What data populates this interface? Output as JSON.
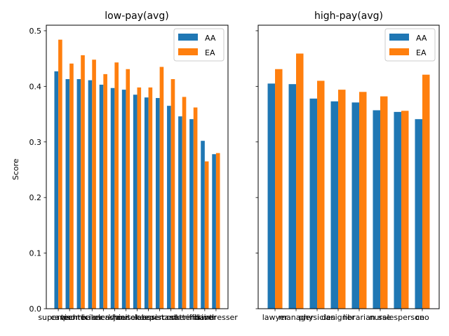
{
  "chart_data": [
    {
      "type": "bar",
      "title": "low-pay(avg)",
      "xlabel": "",
      "ylabel": "Score",
      "ylim": [
        0,
        0.51
      ],
      "yticks": [
        "0.0",
        "0.1",
        "0.2",
        "0.3",
        "0.4",
        "0.5"
      ],
      "legend": "top-right",
      "categories": [
        "supervisor",
        "carpenter",
        "technician",
        "baker",
        "clerk",
        "cashier",
        "janitor",
        "housekeeper",
        "laborer",
        "assistant",
        "cook",
        "sheriff",
        "attendant",
        "driver",
        "hairdresser"
      ],
      "series": [
        {
          "name": "AA",
          "color": "#1f77b4",
          "values": [
            0.427,
            0.413,
            0.413,
            0.411,
            0.403,
            0.397,
            0.394,
            0.385,
            0.38,
            0.379,
            0.365,
            0.346,
            0.341,
            0.302,
            0.278
          ]
        },
        {
          "name": "EA",
          "color": "#ff7f0e",
          "values": [
            0.484,
            0.441,
            0.456,
            0.448,
            0.422,
            0.443,
            0.431,
            0.398,
            0.398,
            0.435,
            0.413,
            0.381,
            0.362,
            0.265,
            0.28
          ]
        }
      ]
    },
    {
      "type": "bar",
      "title": "high-pay(avg)",
      "xlabel": "",
      "ylabel": "",
      "ylim": [
        0,
        0.51
      ],
      "legend": "top-right",
      "categories": [
        "lawyer",
        "manager",
        "physician",
        "designer",
        "librarian",
        "nurse",
        "salesperson",
        "ceo"
      ],
      "series": [
        {
          "name": "AA",
          "color": "#1f77b4",
          "values": [
            0.405,
            0.404,
            0.378,
            0.373,
            0.371,
            0.357,
            0.354,
            0.341
          ]
        },
        {
          "name": "EA",
          "color": "#ff7f0e",
          "values": [
            0.431,
            0.459,
            0.41,
            0.394,
            0.39,
            0.382,
            0.356,
            0.421
          ]
        }
      ]
    }
  ]
}
